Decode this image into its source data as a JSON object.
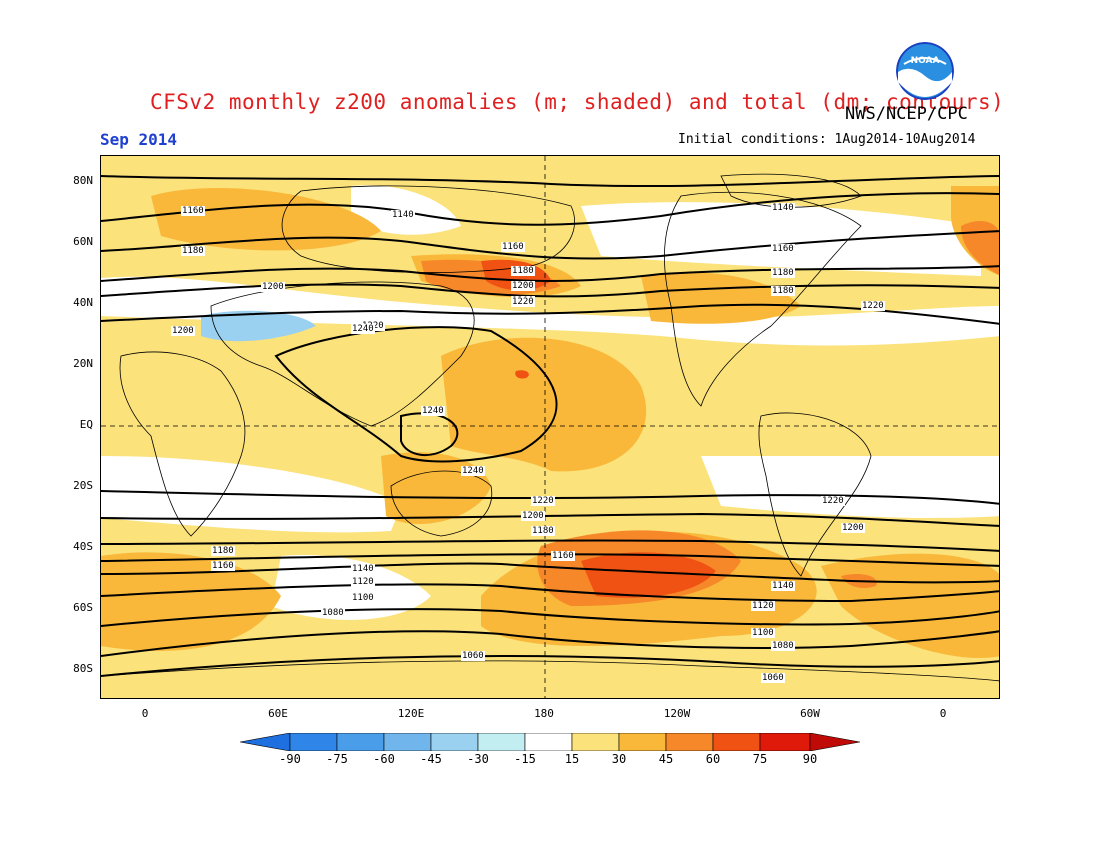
{
  "header": {
    "title": "CFSv2 monthly z200 anomalies (m; shaded) and total (dm; contours)",
    "agency": "NWS/NCEP/CPC",
    "month": "Sep 2014",
    "initial_conditions": "Initial conditions: 1Aug2014-10Aug2014",
    "logo_text": "NOAA",
    "logo_icon": "noaa-logo-icon"
  },
  "axes": {
    "lat_labels": [
      "80N",
      "60N",
      "40N",
      "20N",
      "EQ",
      "20S",
      "40S",
      "60S",
      "80S"
    ],
    "lon_labels": [
      "0",
      "60E",
      "120E",
      "180",
      "120W",
      "60W",
      "0"
    ]
  },
  "colorbar": {
    "labels": [
      "-90",
      "-75",
      "-60",
      "-45",
      "-30",
      "-15",
      "15",
      "30",
      "45",
      "60",
      "75",
      "90"
    ],
    "colors": [
      "#1e6fe0",
      "#2f86e8",
      "#4a9de8",
      "#70b6ec",
      "#9ad0f0",
      "#c2eef2",
      "#ffffff",
      "#fbe27a",
      "#f9b83a",
      "#f6882a",
      "#f05214",
      "#e01a0a",
      "#c00a08"
    ]
  },
  "contour_labels": {
    "total_dm": [
      "1160",
      "1140",
      "1140",
      "1180",
      "1160",
      "1180",
      "1160",
      "1200",
      "1180",
      "1200",
      "1180",
      "1200",
      "1220",
      "1200",
      "1220",
      "1220",
      "1240",
      "1240",
      "1240",
      "1220",
      "1220",
      "1200",
      "1200",
      "1180",
      "1180",
      "1160",
      "1160",
      "1140",
      "1140",
      "1120",
      "1120",
      "1100",
      "1100",
      "1080",
      "1080",
      "1060",
      "1060"
    ]
  }
}
